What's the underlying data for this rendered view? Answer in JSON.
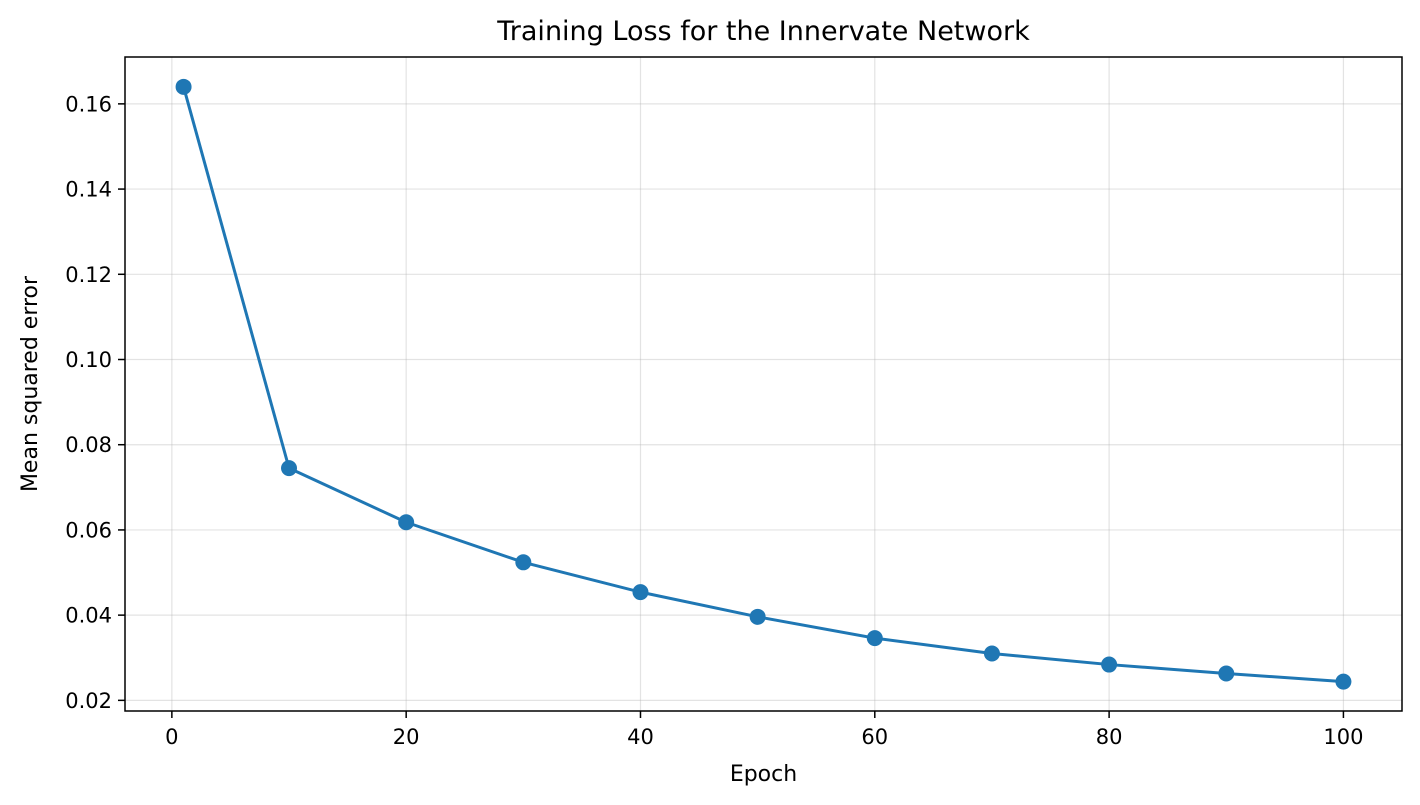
{
  "chart_data": {
    "type": "line",
    "title": "Training Loss for the Innervate Network",
    "xlabel": "Epoch",
    "ylabel": "Mean squared error",
    "xlim": [
      -4.0,
      105.0
    ],
    "ylim": [
      0.0175,
      0.171
    ],
    "xticks": [
      0,
      20,
      40,
      60,
      80,
      100
    ],
    "xtick_labels": [
      "0",
      "20",
      "40",
      "60",
      "80",
      "100"
    ],
    "yticks": [
      0.02,
      0.04,
      0.06,
      0.08,
      0.1,
      0.12,
      0.14,
      0.16
    ],
    "ytick_labels": [
      "0.02",
      "0.04",
      "0.06",
      "0.08",
      "0.10",
      "0.12",
      "0.14",
      "0.16"
    ],
    "grid": true,
    "legend": "none",
    "color": "#1f77b4",
    "series": [
      {
        "x": [
          1,
          10,
          20,
          30,
          40,
          50,
          60,
          70,
          80,
          90,
          100
        ],
        "values": [
          0.164,
          0.0745,
          0.0618,
          0.0524,
          0.0454,
          0.0396,
          0.0346,
          0.031,
          0.0284,
          0.0263,
          0.0244
        ]
      }
    ]
  }
}
